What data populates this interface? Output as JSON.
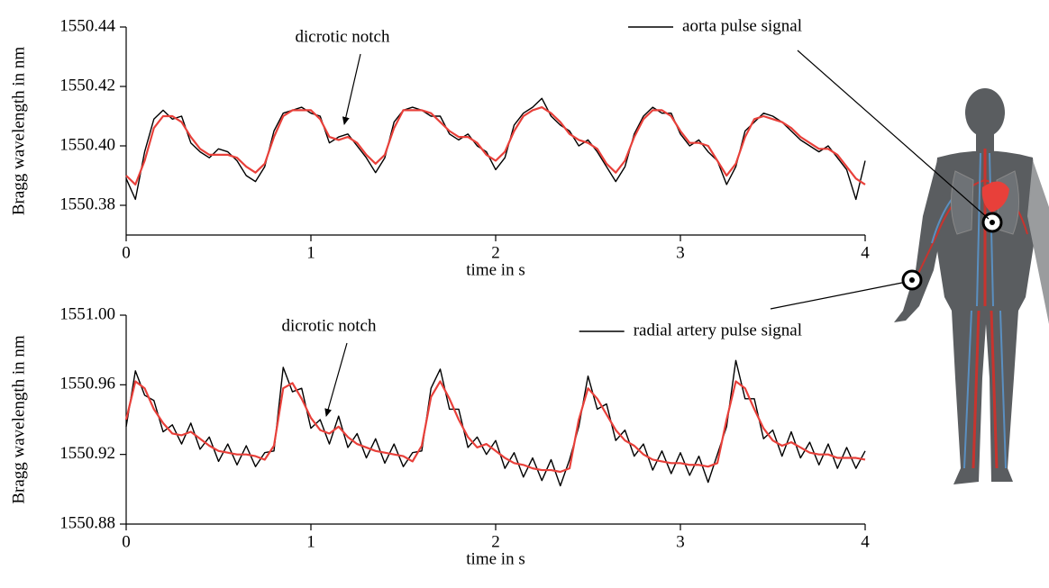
{
  "chart_data": [
    {
      "type": "line",
      "ylabel": "Bragg wavelength in nm",
      "xlabel": "time in s",
      "legend": "upper right",
      "x": [
        0,
        0.05,
        0.1,
        0.15,
        0.2,
        0.25,
        0.3,
        0.35,
        0.4,
        0.45,
        0.5,
        0.55,
        0.6,
        0.65,
        0.7,
        0.75,
        0.8,
        0.85,
        0.9,
        0.95,
        1,
        1.05,
        1.1,
        1.15,
        1.2,
        1.25,
        1.3,
        1.35,
        1.4,
        1.45,
        1.5,
        1.55,
        1.6,
        1.65,
        1.7,
        1.75,
        1.8,
        1.85,
        1.9,
        1.95,
        2,
        2.05,
        2.1,
        2.15,
        2.2,
        2.25,
        2.3,
        2.35,
        2.4,
        2.45,
        2.5,
        2.55,
        2.6,
        2.65,
        2.7,
        2.75,
        2.8,
        2.85,
        2.9,
        2.95,
        3,
        3.05,
        3.1,
        3.15,
        3.2,
        3.25,
        3.3,
        3.35,
        3.4,
        3.45,
        3.5,
        3.55,
        3.6,
        3.65,
        3.7,
        3.75,
        3.8,
        3.85,
        3.9,
        3.95,
        4
      ],
      "xlim": [
        0,
        4
      ],
      "xticks": [
        0,
        1,
        2,
        3,
        4
      ],
      "ylim": [
        1550.37,
        1550.44
      ],
      "yticks": [
        1550.38,
        {
          "value": 1550.4,
          "label": "1550.40"
        },
        1550.42,
        1550.44
      ],
      "series": [
        {
          "name": "aorta pulse signal",
          "color": "#000000",
          "values": [
            1550.389,
            1550.382,
            1550.398,
            1550.409,
            1550.412,
            1550.409,
            1550.41,
            1550.401,
            1550.398,
            1550.396,
            1550.399,
            1550.398,
            1550.395,
            1550.39,
            1550.388,
            1550.393,
            1550.405,
            1550.411,
            1550.412,
            1550.413,
            1550.411,
            1550.41,
            1550.401,
            1550.403,
            1550.404,
            1550.4,
            1550.396,
            1550.391,
            1550.396,
            1550.408,
            1550.412,
            1550.413,
            1550.412,
            1550.41,
            1550.41,
            1550.404,
            1550.402,
            1550.404,
            1550.4,
            1550.398,
            1550.392,
            1550.396,
            1550.407,
            1550.411,
            1550.413,
            1550.416,
            1550.41,
            1550.407,
            1550.405,
            1550.4,
            1550.402,
            1550.398,
            1550.393,
            1550.388,
            1550.393,
            1550.404,
            1550.41,
            1550.413,
            1550.411,
            1550.411,
            1550.404,
            1550.4,
            1550.402,
            1550.398,
            1550.395,
            1550.387,
            1550.393,
            1550.405,
            1550.408,
            1550.411,
            1550.41,
            1550.408,
            1550.405,
            1550.402,
            1550.4,
            1550.398,
            1550.4,
            1550.396,
            1550.392,
            1550.382,
            1550.395
          ]
        },
        {
          "color": "#e8403a",
          "values": [
            1550.39,
            1550.387,
            1550.395,
            1550.406,
            1550.41,
            1550.41,
            1550.408,
            1550.403,
            1550.399,
            1550.397,
            1550.397,
            1550.397,
            1550.396,
            1550.393,
            1550.391,
            1550.394,
            1550.403,
            1550.41,
            1550.412,
            1550.412,
            1550.412,
            1550.409,
            1550.403,
            1550.402,
            1550.403,
            1550.401,
            1550.397,
            1550.394,
            1550.397,
            1550.406,
            1550.412,
            1550.412,
            1550.412,
            1550.411,
            1550.408,
            1550.405,
            1550.403,
            1550.403,
            1550.401,
            1550.397,
            1550.395,
            1550.398,
            1550.405,
            1550.41,
            1550.412,
            1550.413,
            1550.411,
            1550.408,
            1550.404,
            1550.402,
            1550.401,
            1550.399,
            1550.394,
            1550.391,
            1550.395,
            1550.403,
            1550.409,
            1550.412,
            1550.412,
            1550.41,
            1550.405,
            1550.401,
            1550.401,
            1550.4,
            1550.395,
            1550.39,
            1550.394,
            1550.403,
            1550.409,
            1550.41,
            1550.409,
            1550.408,
            1550.406,
            1550.403,
            1550.401,
            1550.399,
            1550.399,
            1550.397,
            1550.393,
            1550.389,
            1550.387
          ]
        }
      ],
      "annotation": "dicrotic notch"
    },
    {
      "type": "line",
      "ylabel": "Bragg wavelength in nm",
      "xlabel": "time in s",
      "legend": "upper right",
      "x": [
        0,
        0.05,
        0.1,
        0.15,
        0.2,
        0.25,
        0.3,
        0.35,
        0.4,
        0.45,
        0.5,
        0.55,
        0.6,
        0.65,
        0.7,
        0.75,
        0.8,
        0.85,
        0.9,
        0.95,
        1,
        1.05,
        1.1,
        1.15,
        1.2,
        1.25,
        1.3,
        1.35,
        1.4,
        1.45,
        1.5,
        1.55,
        1.6,
        1.65,
        1.7,
        1.75,
        1.8,
        1.85,
        1.9,
        1.95,
        2,
        2.05,
        2.1,
        2.15,
        2.2,
        2.25,
        2.3,
        2.35,
        2.4,
        2.45,
        2.5,
        2.55,
        2.6,
        2.65,
        2.7,
        2.75,
        2.8,
        2.85,
        2.9,
        2.95,
        3,
        3.05,
        3.1,
        3.15,
        3.2,
        3.25,
        3.3,
        3.35,
        3.4,
        3.45,
        3.5,
        3.55,
        3.6,
        3.65,
        3.7,
        3.75,
        3.8,
        3.85,
        3.9,
        3.95,
        4
      ],
      "xlim": [
        0,
        4
      ],
      "xticks": [
        0,
        1,
        2,
        3,
        4
      ],
      "ylim": [
        1550.88,
        1551.0
      ],
      "yticks": [
        1550.88,
        1550.92,
        1550.96,
        {
          "value": 1551.0,
          "label": "1551.00"
        }
      ],
      "series": [
        {
          "name": "radial artery pulse signal",
          "color": "#000000",
          "values": [
            1550.936,
            1550.968,
            1550.954,
            1550.951,
            1550.933,
            1550.937,
            1550.926,
            1550.938,
            1550.923,
            1550.93,
            1550.916,
            1550.926,
            1550.914,
            1550.925,
            1550.913,
            1550.921,
            1550.922,
            1550.97,
            1550.956,
            1550.958,
            1550.935,
            1550.94,
            1550.926,
            1550.942,
            1550.924,
            1550.932,
            1550.918,
            1550.929,
            1550.915,
            1550.926,
            1550.913,
            1550.921,
            1550.922,
            1550.958,
            1550.969,
            1550.946,
            1550.946,
            1550.924,
            1550.93,
            1550.92,
            1550.928,
            1550.912,
            1550.921,
            1550.907,
            1550.918,
            1550.905,
            1550.917,
            1550.902,
            1550.917,
            1550.936,
            1550.965,
            1550.946,
            1550.949,
            1550.928,
            1550.934,
            1550.919,
            1550.926,
            1550.911,
            1550.922,
            1550.909,
            1550.921,
            1550.908,
            1550.919,
            1550.904,
            1550.92,
            1550.936,
            1550.974,
            1550.952,
            1550.952,
            1550.929,
            1550.934,
            1550.919,
            1550.933,
            1550.918,
            1550.927,
            1550.914,
            1550.926,
            1550.912,
            1550.924,
            1550.912,
            1550.922
          ]
        },
        {
          "color": "#e8403a",
          "values": [
            1550.94,
            1550.962,
            1550.958,
            1550.946,
            1550.938,
            1550.932,
            1550.931,
            1550.933,
            1550.929,
            1550.925,
            1550.922,
            1550.921,
            1550.92,
            1550.92,
            1550.919,
            1550.917,
            1550.925,
            1550.958,
            1550.961,
            1550.952,
            1550.941,
            1550.934,
            1550.932,
            1550.936,
            1550.93,
            1550.926,
            1550.924,
            1550.922,
            1550.921,
            1550.92,
            1550.919,
            1550.916,
            1550.925,
            1550.953,
            1550.962,
            1550.952,
            1550.94,
            1550.93,
            1550.924,
            1550.926,
            1550.922,
            1550.918,
            1550.915,
            1550.914,
            1550.912,
            1550.911,
            1550.911,
            1550.91,
            1550.912,
            1550.94,
            1550.958,
            1550.952,
            1550.943,
            1550.934,
            1550.928,
            1550.925,
            1550.92,
            1550.917,
            1550.916,
            1550.915,
            1550.915,
            1550.914,
            1550.914,
            1550.913,
            1550.915,
            1550.94,
            1550.962,
            1550.958,
            1550.946,
            1550.935,
            1550.928,
            1550.925,
            1550.927,
            1550.924,
            1550.921,
            1550.92,
            1550.92,
            1550.918,
            1550.918,
            1550.918,
            1550.917
          ]
        }
      ],
      "annotation": "dicrotic notch"
    }
  ]
}
